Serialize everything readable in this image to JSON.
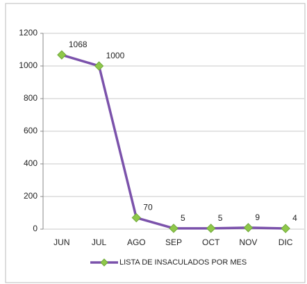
{
  "chart_data": {
    "type": "line",
    "categories": [
      "JUN",
      "JUL",
      "AGO",
      "SEP",
      "OCT",
      "NOV",
      "DIC"
    ],
    "series": [
      {
        "name": "LISTA DE INSACULADOS POR MES",
        "color": "#7b52ab",
        "marker_color": "#8fc84a",
        "values": [
          1068,
          1000,
          70,
          5,
          5,
          9,
          4
        ]
      }
    ],
    "ylim": [
      0,
      1200
    ],
    "yticks": [
      0,
      200,
      400,
      600,
      800,
      1000,
      1200
    ],
    "grid": true,
    "legend": "bottom",
    "data_labels": true
  }
}
